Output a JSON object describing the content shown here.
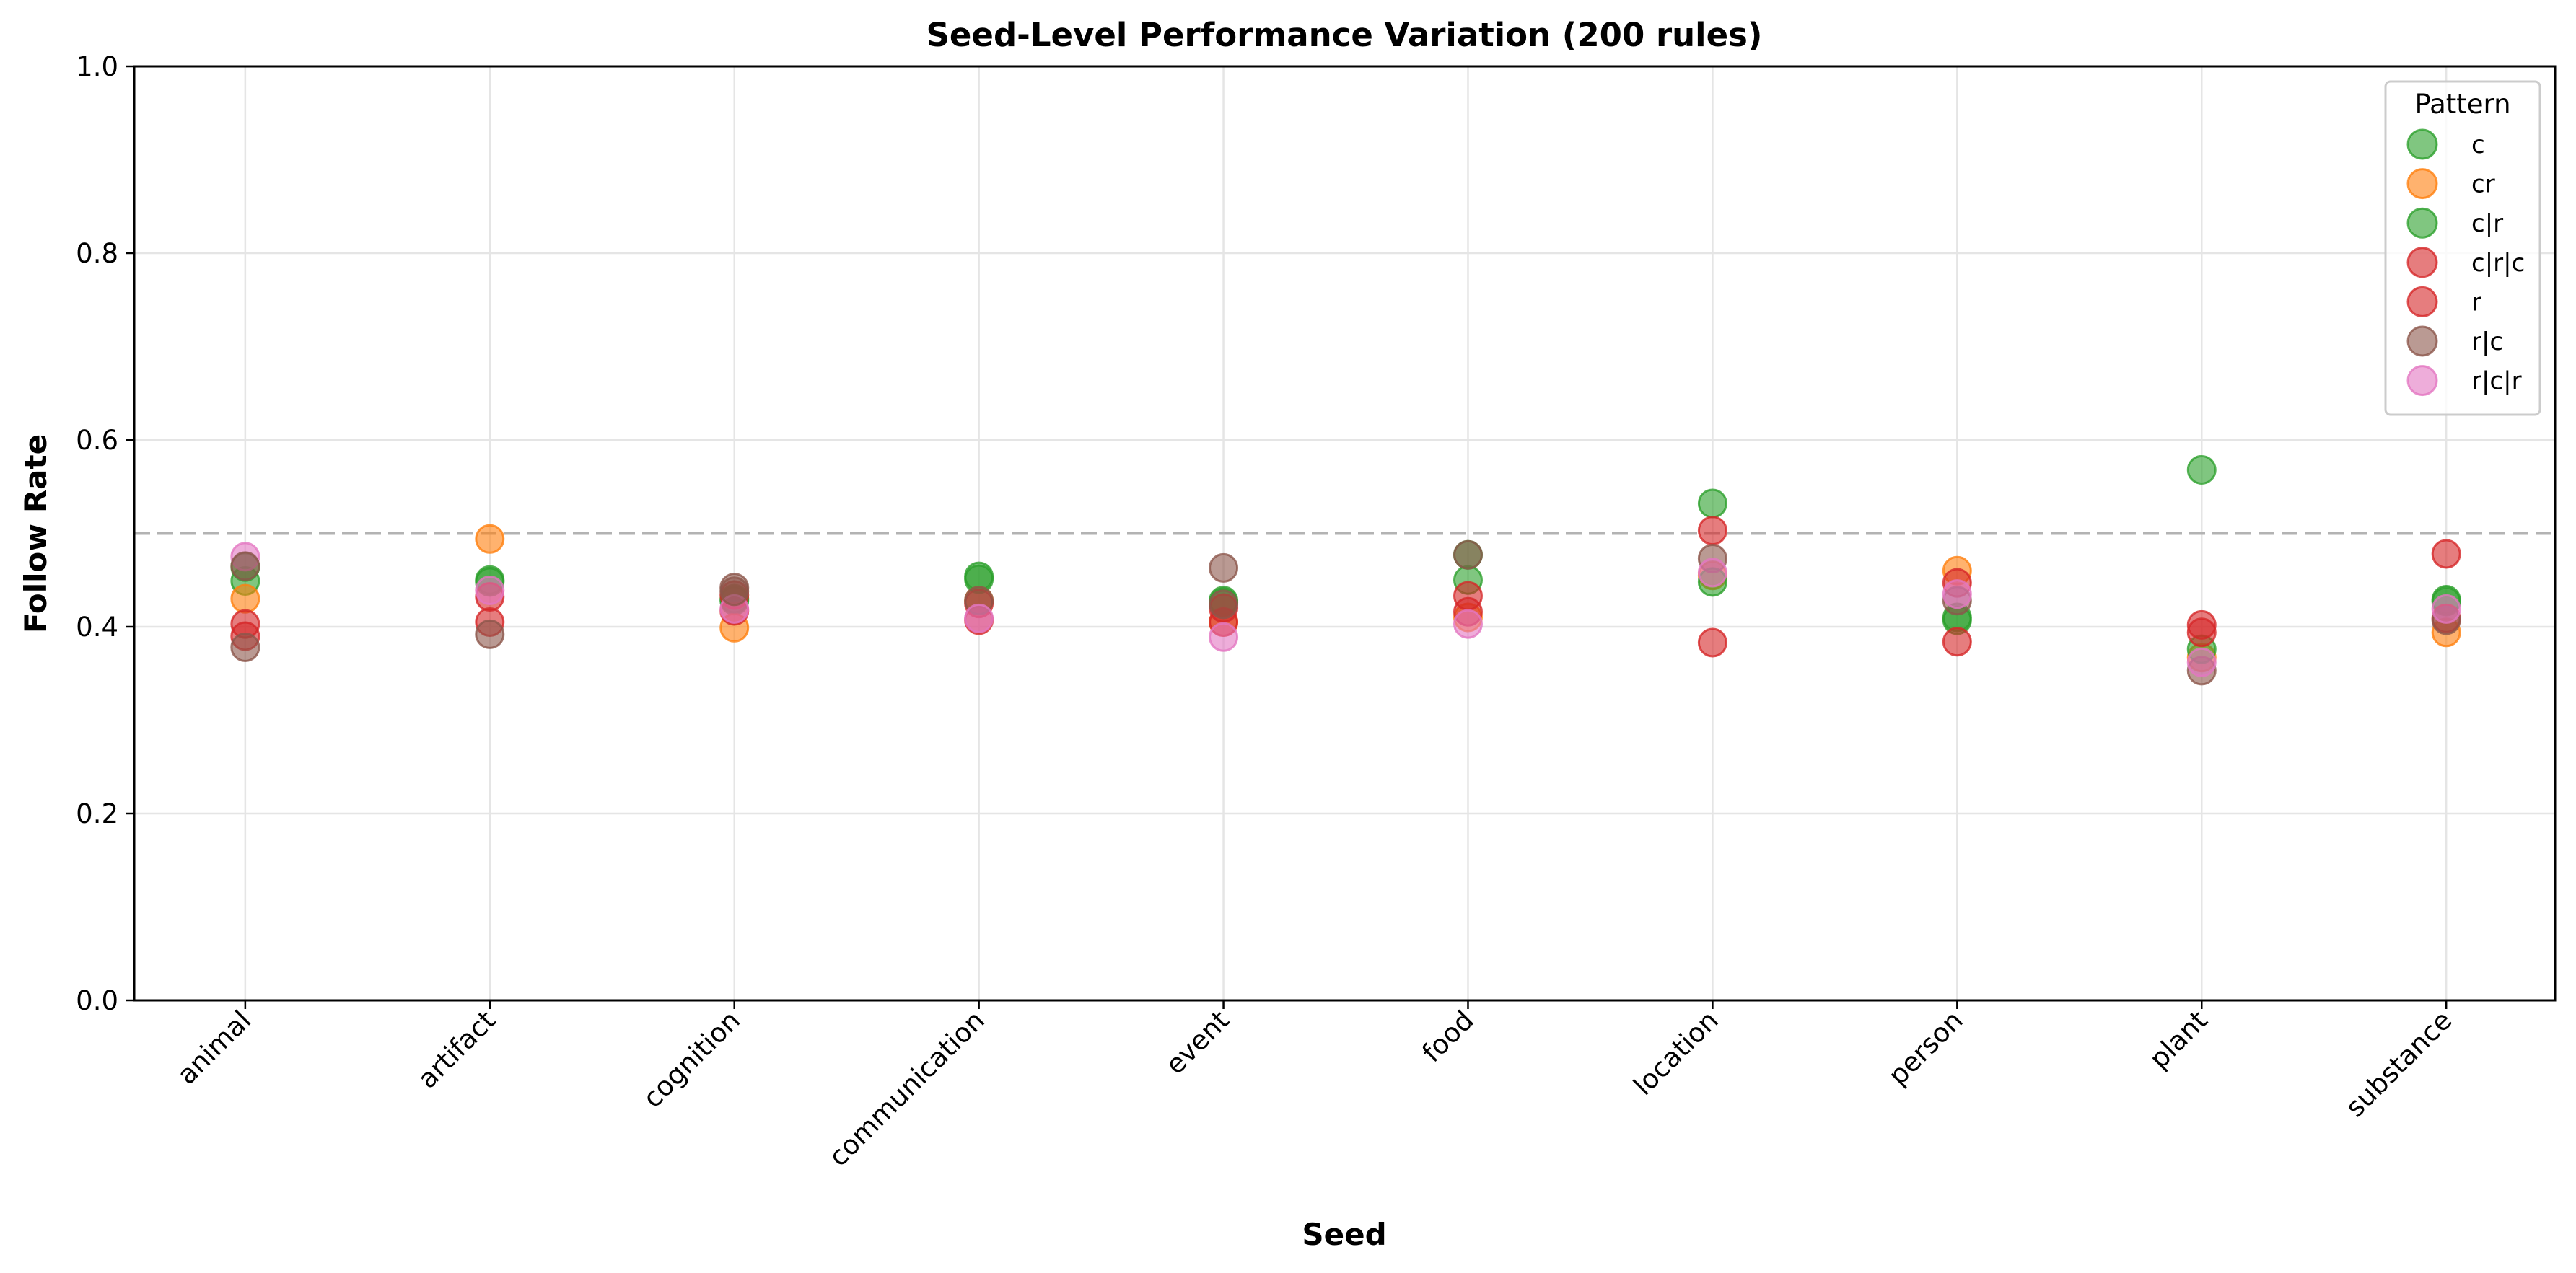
{
  "chart_data": {
    "type": "scatter",
    "title": "Seed-Level Performance Variation (200 rules)",
    "xlabel": "Seed",
    "ylabel": "Follow Rate",
    "categories": [
      "animal",
      "artifact",
      "cognition",
      "communication",
      "event",
      "food",
      "location",
      "person",
      "plant",
      "substance"
    ],
    "ylim": [
      0.0,
      1.0
    ],
    "yticks": [
      0.0,
      0.2,
      0.4,
      0.6,
      0.8,
      1.0
    ],
    "ytick_labels": [
      "0.0",
      "0.2",
      "0.4",
      "0.6",
      "0.8",
      "1.0"
    ],
    "grid": true,
    "reference_line": {
      "y": 0.5,
      "style": "dashed",
      "color": "#b3b3b3"
    },
    "legend": {
      "title": "Pattern",
      "placement": "top-right"
    },
    "series": [
      {
        "name": "c",
        "color": "#2ca02c",
        "values": [
          0.449,
          0.45,
          0.428,
          0.454,
          0.428,
          0.477,
          0.532,
          0.41,
          0.568,
          0.429
        ]
      },
      {
        "name": "cr",
        "color": "#ff7f0e",
        "values": [
          0.43,
          0.494,
          0.399,
          0.428,
          0.405,
          0.41,
          0.455,
          0.46,
          0.367,
          0.394
        ]
      },
      {
        "name": "c|r",
        "color": "#2ca02c",
        "values": [
          0.464,
          0.448,
          0.43,
          0.451,
          0.426,
          0.45,
          0.448,
          0.407,
          0.376,
          0.427
        ]
      },
      {
        "name": "c|r|c",
        "color": "#d62728",
        "values": [
          0.403,
          0.432,
          0.434,
          0.425,
          0.42,
          0.433,
          0.503,
          0.447,
          0.402,
          0.478
        ]
      },
      {
        "name": "r",
        "color": "#d62728",
        "values": [
          0.39,
          0.405,
          0.417,
          0.407,
          0.405,
          0.416,
          0.383,
          0.384,
          0.394,
          0.409
        ]
      },
      {
        "name": "r|c",
        "color": "#8c564b",
        "values": [
          0.378,
          0.392,
          0.442,
          0.428,
          0.463,
          0.477,
          0.473,
          0.428,
          0.353,
          0.407
        ]
      },
      {
        "name": "r|c|r",
        "color": "#e377c2",
        "values": [
          0.475,
          0.439,
          0.419,
          0.409,
          0.389,
          0.403,
          0.458,
          0.435,
          0.362,
          0.419
        ]
      }
    ],
    "extra_points": [
      {
        "series": "r|c",
        "category": "animal",
        "value": 0.465
      },
      {
        "series": "r|c",
        "category": "cognition",
        "value": 0.438
      },
      {
        "series": "r|c",
        "category": "event",
        "value": 0.424
      }
    ]
  }
}
